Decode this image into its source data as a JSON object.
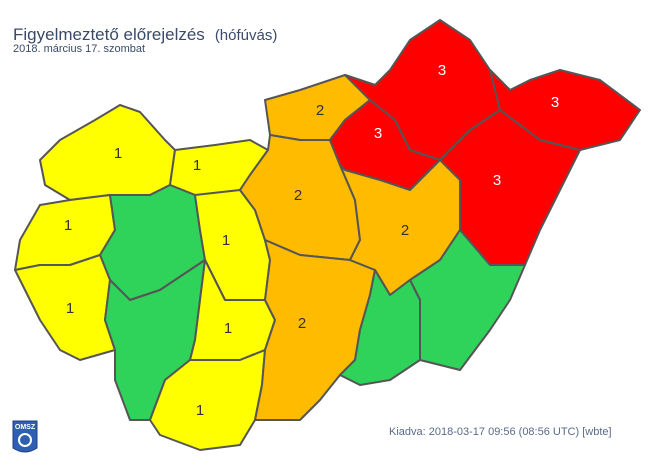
{
  "header": {
    "title": "Figyelmeztető előrejelzés",
    "subtitle": "(hófúvás)",
    "date": "2018. március 17. szombat"
  },
  "footer": {
    "issued": "Kiadva: 2018-03-17 09:56 (08:56 UTC) [wbte]",
    "logo_text": "OMSZ"
  },
  "level_colors": {
    "0": "#2fd35a",
    "1": "#ffff00",
    "2": "#ffbb00",
    "3": "#ff0000"
  },
  "border_color": "#555555",
  "regions": [
    {
      "id": "gyor-moson-sopron",
      "level": 1
    },
    {
      "id": "komarom-esztergom",
      "level": 1
    },
    {
      "id": "nograd",
      "level": 2
    },
    {
      "id": "vas",
      "level": 1
    },
    {
      "id": "veszprem",
      "level": 0
    },
    {
      "id": "fejer",
      "level": 1
    },
    {
      "id": "zala",
      "level": 1
    },
    {
      "id": "somogy",
      "level": 0
    },
    {
      "id": "tolna",
      "level": 1
    },
    {
      "id": "baranya",
      "level": 1
    },
    {
      "id": "pest",
      "level": 2
    },
    {
      "id": "bacs-kiskun",
      "level": 2
    },
    {
      "id": "borsod-abauj-zemplen",
      "level": 3
    },
    {
      "id": "heves",
      "level": 3
    },
    {
      "id": "szabolcs-szatmar-bereg",
      "level": 3
    },
    {
      "id": "hajdu-bihar",
      "level": 3
    },
    {
      "id": "jasz-nagykun-szolnok",
      "level": 2
    },
    {
      "id": "bekes",
      "level": 0
    },
    {
      "id": "csongrad",
      "level": 0
    }
  ]
}
